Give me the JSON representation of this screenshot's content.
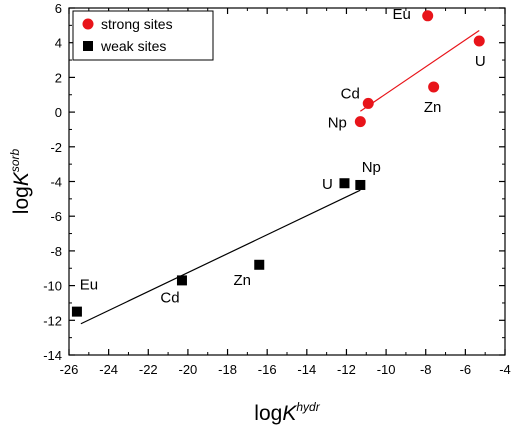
{
  "chart_data": {
    "type": "scatter",
    "xlabel": {
      "base": "log",
      "var": "K",
      "sup": "hydr"
    },
    "ylabel": {
      "base": "log",
      "var": "K",
      "sup": "sorb"
    },
    "xlim": [
      -26,
      -4
    ],
    "ylim": [
      -14,
      6
    ],
    "xticks": [
      -26,
      -24,
      -22,
      -20,
      -18,
      -16,
      -14,
      -12,
      -10,
      -8,
      -6,
      -4
    ],
    "yticks": [
      -14,
      -12,
      -10,
      -8,
      -6,
      -4,
      -2,
      0,
      2,
      4,
      6
    ],
    "legend_position": "top-left",
    "series": [
      {
        "name": "strong sites",
        "marker": "circle",
        "color": "#e8141a",
        "points": [
          {
            "label": "Eu",
            "x": -7.9,
            "y": 5.55
          },
          {
            "label": "U",
            "x": -5.3,
            "y": 4.1
          },
          {
            "label": "Cd",
            "x": -10.9,
            "y": 0.5
          },
          {
            "label": "Np",
            "x": -11.3,
            "y": -0.55
          },
          {
            "label": "Zn",
            "x": -7.6,
            "y": 1.45
          }
        ],
        "fit": {
          "x": [
            -11.3,
            -5.3
          ],
          "y": [
            0.05,
            4.7
          ],
          "color": "#e8141a"
        }
      },
      {
        "name": "weak sites",
        "marker": "square",
        "color": "#000000",
        "points": [
          {
            "label": "Eu",
            "x": -25.6,
            "y": -11.5
          },
          {
            "label": "Cd",
            "x": -20.3,
            "y": -9.7
          },
          {
            "label": "Zn",
            "x": -16.4,
            "y": -8.8
          },
          {
            "label": "U",
            "x": -12.1,
            "y": -4.1
          },
          {
            "label": "Np",
            "x": -11.3,
            "y": -4.2
          }
        ],
        "fit": {
          "x": [
            -25.4,
            -11.3
          ],
          "y": [
            -12.2,
            -4.5
          ],
          "color": "#000000"
        }
      }
    ]
  }
}
